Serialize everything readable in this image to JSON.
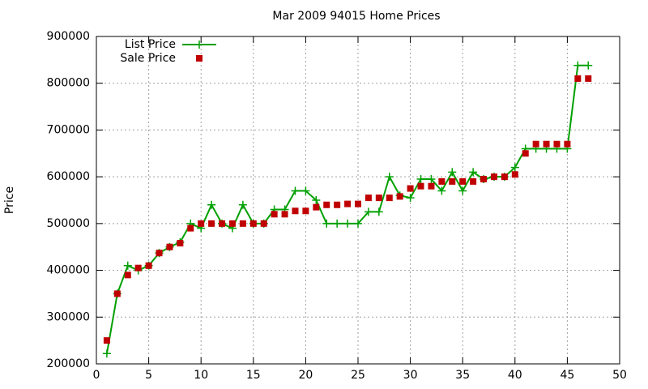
{
  "chart_data": {
    "type": "line",
    "title": "Mar 2009 94015 Home Prices",
    "y_label": "Price",
    "x": [
      1,
      2,
      3,
      4,
      5,
      6,
      7,
      8,
      9,
      10,
      11,
      12,
      13,
      14,
      15,
      16,
      17,
      18,
      19,
      20,
      21,
      22,
      23,
      24,
      25,
      26,
      27,
      28,
      29,
      30,
      31,
      32,
      33,
      34,
      35,
      36,
      37,
      38,
      39,
      40,
      41,
      42,
      43,
      44,
      45,
      46,
      47
    ],
    "series": [
      {
        "name": "List Price",
        "color": "#00a000",
        "style": "linespoints",
        "values": [
          222000,
          350000,
          410000,
          400000,
          410000,
          437000,
          450000,
          460000,
          500000,
          490000,
          540000,
          500000,
          490000,
          540000,
          500000,
          500000,
          530000,
          530000,
          570000,
          570000,
          550000,
          500000,
          500000,
          500000,
          500000,
          525000,
          525000,
          600000,
          560000,
          555000,
          595000,
          595000,
          570000,
          610000,
          570000,
          610000,
          595000,
          600000,
          600000,
          620000,
          660000,
          660000,
          660000,
          660000,
          660000,
          838000,
          838000
        ]
      },
      {
        "name": "Sale Price",
        "color": "#c00000",
        "style": "points",
        "values": [
          250000,
          350000,
          390000,
          405000,
          410000,
          437000,
          450000,
          458000,
          490000,
          500000,
          500000,
          500000,
          500000,
          500000,
          500000,
          500000,
          520000,
          520000,
          527000,
          527000,
          535000,
          540000,
          540000,
          542000,
          542000,
          555000,
          555000,
          555000,
          558000,
          575000,
          580000,
          580000,
          590000,
          590000,
          590000,
          590000,
          595000,
          600000,
          600000,
          605000,
          650000,
          670000,
          670000,
          670000,
          670000,
          810000,
          810000
        ]
      }
    ],
    "xlim": [
      0,
      50
    ],
    "xticks": [
      0,
      5,
      10,
      15,
      20,
      25,
      30,
      35,
      40,
      45,
      50
    ],
    "ylim": [
      200000,
      900000
    ],
    "yticks": [
      200000,
      300000,
      400000,
      500000,
      600000,
      700000,
      800000,
      900000
    ],
    "grid": true,
    "legend": "top-left"
  }
}
